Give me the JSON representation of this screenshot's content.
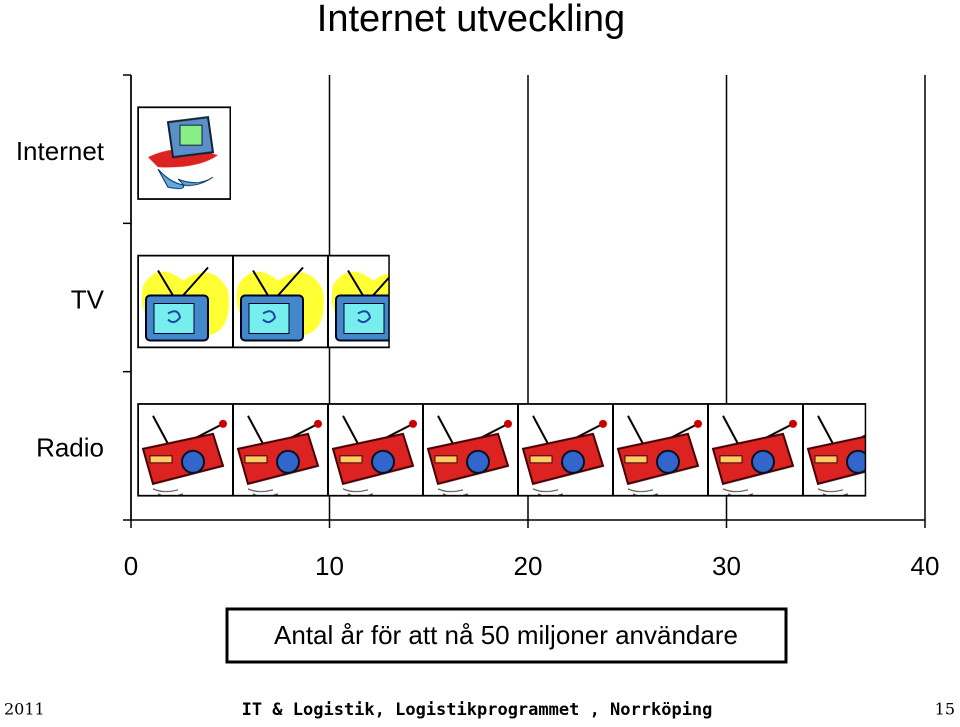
{
  "chart_data": {
    "type": "bar",
    "orientation": "horizontal",
    "title": "Internet utveckling",
    "categories": [
      "Internet",
      "TV",
      "Radio"
    ],
    "values": [
      5,
      13,
      37
    ],
    "xlim": [
      0,
      40
    ],
    "xticks": [
      0,
      10,
      20,
      30,
      40
    ],
    "grid": true,
    "x_label": "Antal år för att nå 50 miljoner användare"
  },
  "footer": {
    "left": "2011",
    "center": "IT & Logistik, Logistikprogrammet , Norrköping",
    "right": "15"
  }
}
